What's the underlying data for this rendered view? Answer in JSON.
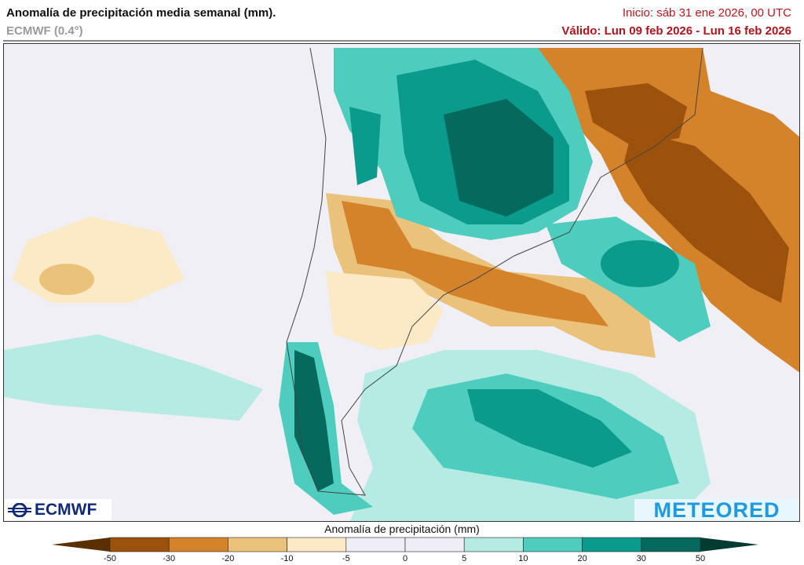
{
  "header": {
    "title": "Anomalía de precipitación media semanal (mm).",
    "model": "ECMWF (0.4°)",
    "inicio": "Inicio:  sáb 31 ene 2026, 00 UTC",
    "valido": "Válido: Lun 09 feb 2026 - Lun 16 feb 2026"
  },
  "map": {
    "region": "South America (southern cone) and adjacent oceans",
    "background_color": "#f0eff6"
  },
  "logos": {
    "ecmwf": "ECMWF",
    "meteored": "METEORED"
  },
  "legend": {
    "title": "Anomalía de precipitación (mm)",
    "ticks": [
      "-50",
      "-30",
      "-20",
      "-10",
      "-5",
      "0",
      "5",
      "10",
      "20",
      "30",
      "50"
    ],
    "low_extend_color": "#5a3000",
    "high_extend_color": "#033a32",
    "colors": [
      "#9c520c",
      "#d4832a",
      "#ebc27c",
      "#fce9c6",
      "#efeef6",
      "#efeef6",
      "#b5ebe3",
      "#4ecdbf",
      "#0b9b8c",
      "#05695e"
    ]
  }
}
